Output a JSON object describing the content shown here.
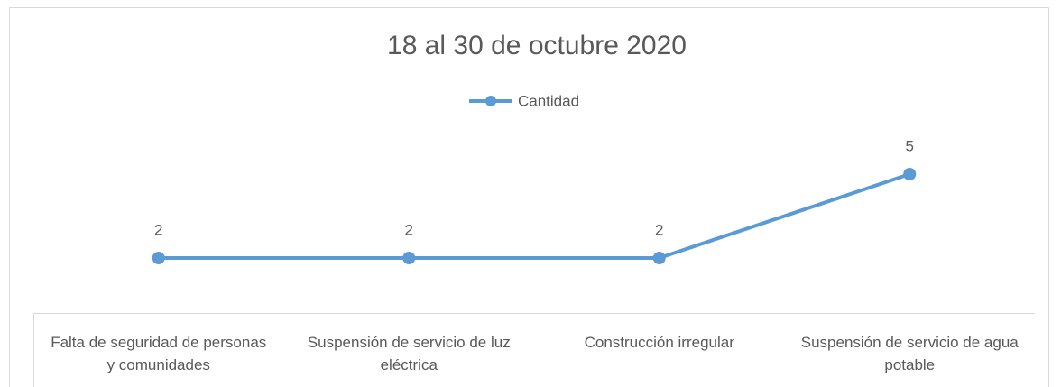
{
  "chart_data": {
    "type": "line",
    "title": "18 al 30 de octubre 2020",
    "categories": [
      "Falta de seguridad de personas y comunidades",
      "Suspensión de servicio de luz eléctrica",
      "Construcción irregular",
      "Suspensión de servicio de agua potable"
    ],
    "series": [
      {
        "name": "Cantidad",
        "color": "#5b9bd5",
        "values": [
          2,
          2,
          2,
          5
        ]
      }
    ],
    "ylim": [
      0,
      6
    ],
    "legend": "top"
  }
}
